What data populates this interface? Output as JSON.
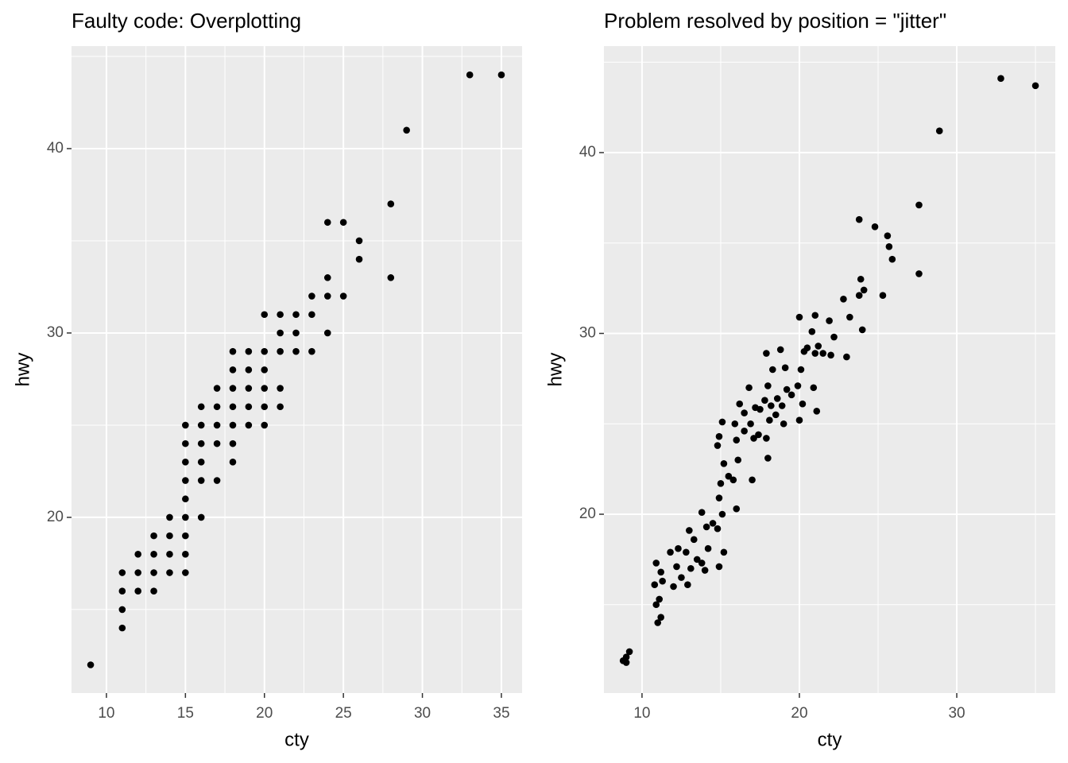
{
  "chart_data": [
    {
      "type": "scatter",
      "title": "Faulty code: Overplotting",
      "x_label": "cty",
      "y_label": "hwy",
      "color": "#000000",
      "grid": true,
      "xlim": [
        7.79,
        36.31
      ],
      "ylim": [
        10.47,
        45.56
      ],
      "xticks": [
        10,
        15,
        20,
        25,
        30,
        35
      ],
      "yticks": [
        20,
        30,
        40
      ],
      "xminor": [
        12.5,
        17.5,
        22.5,
        27.5,
        32.5
      ],
      "yminor": [
        15,
        25,
        35,
        45
      ],
      "x": [
        9,
        11,
        11,
        11,
        11,
        12,
        12,
        12,
        13,
        13,
        13,
        13,
        14,
        14,
        14,
        14,
        15,
        15,
        15,
        15,
        15,
        15,
        15,
        15,
        15,
        16,
        16,
        16,
        16,
        16,
        16,
        17,
        17,
        17,
        17,
        17,
        18,
        18,
        18,
        18,
        18,
        18,
        18,
        19,
        19,
        19,
        19,
        19,
        20,
        20,
        20,
        20,
        20,
        20,
        21,
        21,
        21,
        21,
        21,
        22,
        22,
        22,
        23,
        23,
        23,
        24,
        24,
        24,
        24,
        25,
        25,
        26,
        26,
        28,
        28,
        29,
        33,
        35
      ],
      "y": [
        12,
        14,
        15,
        16,
        17,
        16,
        17,
        18,
        16,
        17,
        18,
        19,
        17,
        18,
        19,
        20,
        17,
        18,
        19,
        20,
        21,
        22,
        23,
        24,
        25,
        20,
        22,
        23,
        24,
        25,
        26,
        22,
        24,
        25,
        26,
        27,
        23,
        24,
        25,
        26,
        27,
        28,
        29,
        25,
        26,
        27,
        28,
        29,
        25,
        26,
        27,
        28,
        29,
        31,
        26,
        27,
        29,
        30,
        31,
        29,
        30,
        31,
        29,
        31,
        32,
        30,
        32,
        33,
        36,
        32,
        36,
        34,
        35,
        33,
        37,
        41,
        44,
        44
      ]
    },
    {
      "type": "scatter",
      "title": "Problem resolved by position = \"jitter\"",
      "x_label": "cty",
      "y_label": "hwy",
      "color": "#000000",
      "grid": true,
      "xlim": [
        7.58,
        36.26
      ],
      "ylim": [
        10.11,
        45.89
      ],
      "xticks": [
        10,
        20,
        30
      ],
      "yticks": [
        20,
        30,
        40
      ],
      "xminor": [
        15,
        25,
        35
      ],
      "yminor": [
        15,
        25,
        35,
        45
      ],
      "x": [
        9.0,
        8.8,
        9.2,
        9.0,
        11.0,
        11.2,
        10.9,
        11.1,
        10.8,
        11.3,
        10.9,
        11.2,
        12.0,
        12.2,
        11.8,
        12.3,
        12.9,
        13.1,
        12.8,
        13.0,
        13.3,
        14.0,
        13.8,
        14.2,
        14.1,
        13.8,
        14.9,
        15.2,
        14.8,
        15.1,
        14.9,
        15.0,
        15.2,
        14.8,
        15.1,
        14.9,
        16.0,
        15.8,
        16.1,
        16.0,
        15.9,
        16.2,
        17.0,
        17.1,
        16.9,
        17.2,
        16.8,
        18.0,
        17.9,
        18.1,
        18.2,
        17.8,
        18.0,
        18.3,
        17.9,
        19.0,
        18.9,
        19.2,
        19.1,
        18.8,
        20.0,
        20.2,
        19.9,
        20.1,
        20.3,
        20.0,
        21.1,
        20.9,
        21.0,
        21.2,
        20.8,
        21.0,
        22.0,
        22.2,
        21.9,
        23.0,
        23.2,
        22.8,
        24.0,
        23.8,
        24.1,
        23.9,
        23.8,
        25.3,
        24.8,
        25.9,
        25.7,
        25.6,
        27.6,
        27.6,
        28.9,
        32.8,
        35.0,
        16.5,
        17.5,
        18.5,
        18.6,
        19.5,
        15.5,
        16.5,
        14.5,
        13.5,
        12.5,
        17.4,
        20.5,
        21.5
      ],
      "y": [
        12.1,
        11.9,
        12.4,
        11.8,
        14.0,
        14.3,
        15.0,
        15.3,
        16.1,
        16.3,
        17.3,
        16.8,
        16.0,
        17.1,
        17.9,
        18.1,
        16.1,
        17.0,
        17.9,
        19.1,
        18.6,
        16.9,
        17.3,
        18.1,
        19.3,
        20.1,
        17.1,
        17.9,
        19.2,
        20.0,
        20.9,
        21.7,
        22.8,
        23.8,
        25.1,
        24.3,
        20.3,
        21.9,
        23.0,
        24.1,
        25.0,
        26.1,
        21.9,
        24.2,
        25.0,
        25.9,
        27.0,
        23.1,
        24.2,
        25.2,
        26.0,
        26.3,
        27.1,
        28.0,
        28.9,
        25.0,
        26.0,
        26.9,
        28.1,
        29.1,
        25.2,
        26.1,
        27.1,
        28.0,
        29.0,
        30.9,
        25.7,
        27.0,
        28.9,
        29.3,
        30.1,
        31.0,
        28.8,
        29.8,
        30.7,
        28.7,
        30.9,
        31.9,
        30.2,
        32.1,
        32.4,
        33.0,
        36.3,
        32.1,
        35.9,
        34.1,
        34.8,
        35.4,
        33.3,
        37.1,
        41.2,
        44.1,
        43.7,
        25.6,
        25.8,
        25.5,
        26.4,
        26.6,
        22.1,
        24.6,
        19.5,
        17.5,
        16.5,
        24.4,
        29.2,
        28.9
      ]
    }
  ]
}
